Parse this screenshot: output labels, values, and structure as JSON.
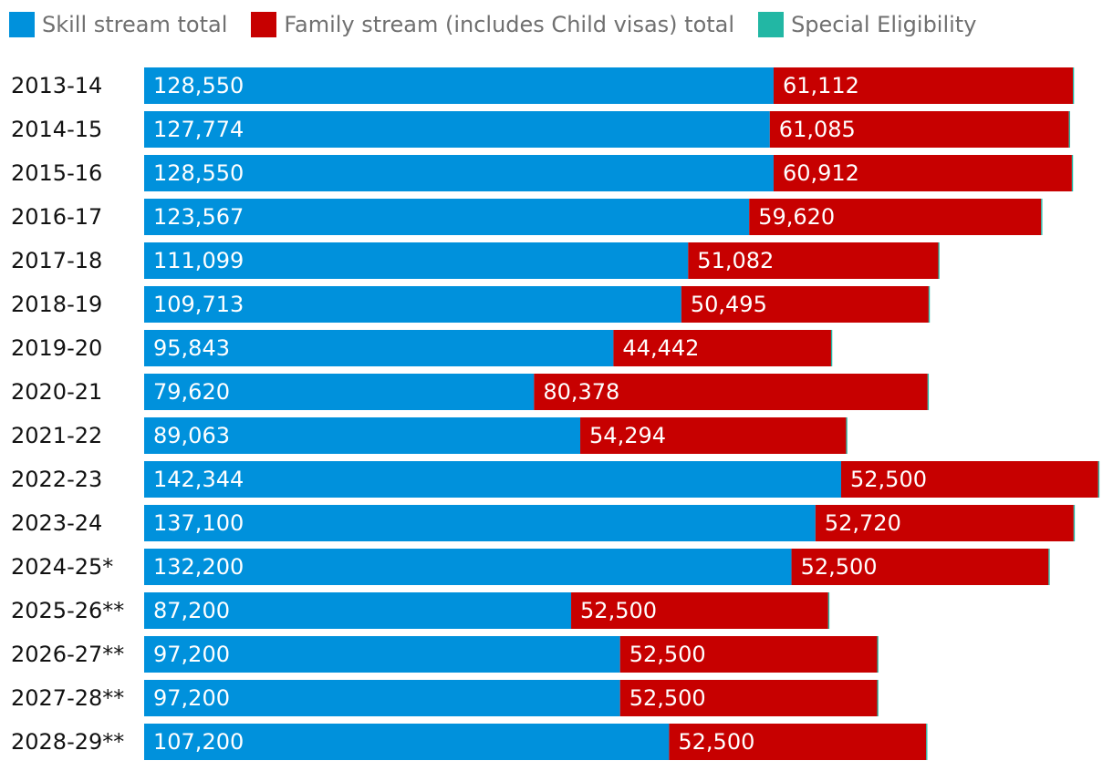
{
  "chart_data": {
    "type": "bar",
    "orientation": "horizontal",
    "stacked": true,
    "categories": [
      "2013-14",
      "2014-15",
      "2015-16",
      "2016-17",
      "2017-18",
      "2018-19",
      "2019-20",
      "2020-21",
      "2021-22",
      "2022-23",
      "2023-24",
      "2024-25*",
      "2025-26**",
      "2026-27**",
      "2027-28**",
      "2028-29**"
    ],
    "series": [
      {
        "name": "Skill stream total",
        "color": "#0091dc",
        "values": [
          128550,
          127774,
          128550,
          123567,
          111099,
          109713,
          95843,
          79620,
          89063,
          142344,
          137100,
          132200,
          87200,
          97200,
          97200,
          107200
        ],
        "labels": [
          "128,550",
          "127,774",
          "128,550",
          "123,567",
          "111,099",
          "109,713",
          "95,843",
          "79,620",
          "89,063",
          "142,344",
          "137,100",
          "132,200",
          "87,200",
          "97,200",
          "97,200",
          "107,200"
        ]
      },
      {
        "name": "Family stream (includes Child visas) total",
        "color": "#c70000",
        "values": [
          61112,
          61085,
          60912,
          59620,
          51082,
          50495,
          44442,
          80378,
          54294,
          52500,
          52720,
          52500,
          52500,
          52500,
          52500,
          52500
        ],
        "labels": [
          "61,112",
          "61,085",
          "60,912",
          "59,620",
          "51,082",
          "50,495",
          "44,442",
          "80,378",
          "54,294",
          "52,500",
          "52,720",
          "52,500",
          "52,500",
          "52,500",
          "52,500",
          "52,500"
        ]
      },
      {
        "name": "Special Eligibility",
        "color": "#22b7a4",
        "values": [
          245,
          245,
          245,
          245,
          245,
          245,
          245,
          245,
          245,
          245,
          245,
          245,
          245,
          245,
          245,
          245
        ]
      }
    ],
    "xlim": [
      0,
      196000
    ],
    "grid": false,
    "legend_position": "top-left"
  }
}
